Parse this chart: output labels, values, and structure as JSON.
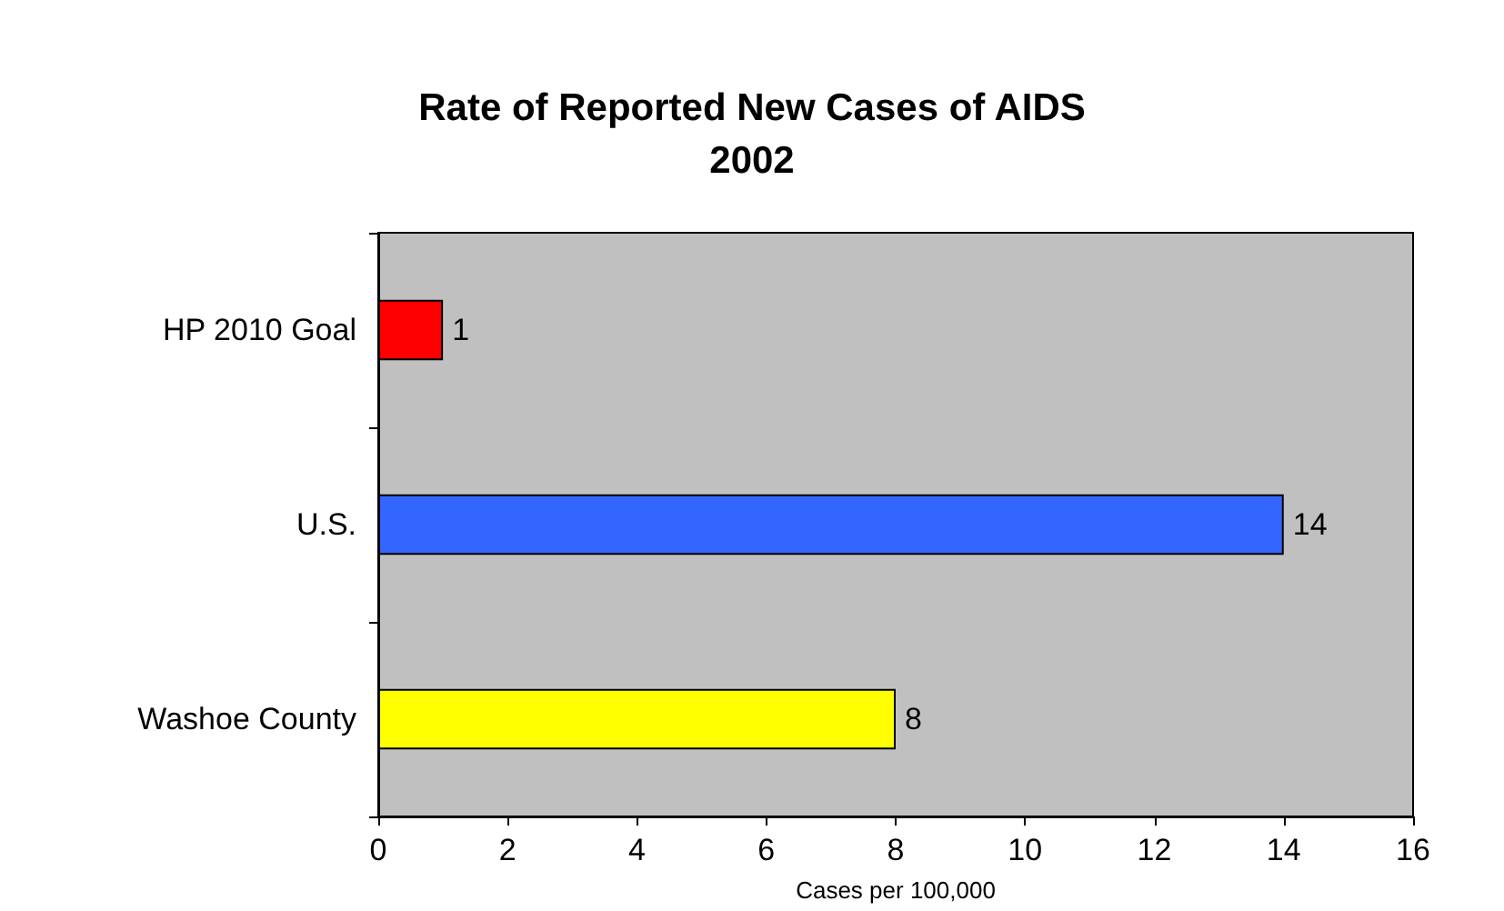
{
  "chart_data": {
    "type": "bar",
    "orientation": "horizontal",
    "title": "Rate of Reported New Cases of AIDS\n2002",
    "xlabel": "Cases per 100,000",
    "categories": [
      "HP 2010 Goal",
      "U.S.",
      "Washoe County"
    ],
    "values": [
      1,
      14,
      8
    ],
    "colors": [
      "#ff0000",
      "#3366ff",
      "#ffff00"
    ],
    "xlim": [
      0,
      16
    ],
    "xticks": [
      0,
      2,
      4,
      6,
      8,
      10,
      12,
      14,
      16
    ],
    "grid": false,
    "data_labels": true
  }
}
